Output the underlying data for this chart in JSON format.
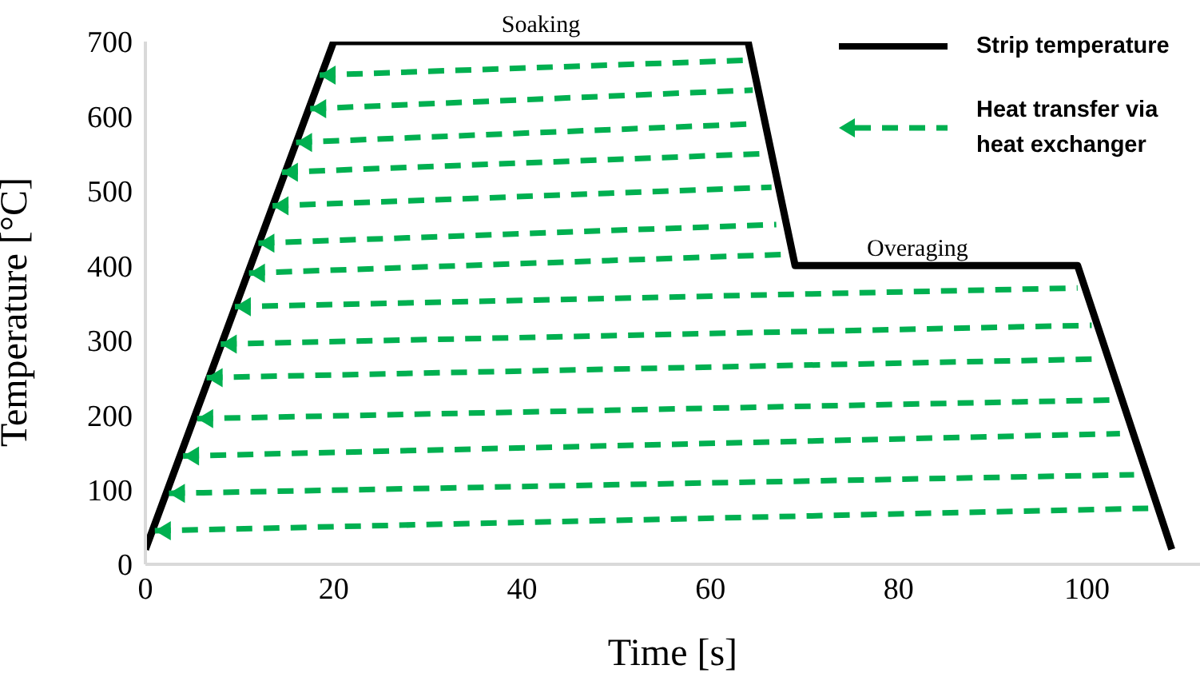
{
  "chart_data": {
    "type": "line",
    "xlabel": "Time [s]",
    "ylabel": "Temperature [°C]",
    "xlim": [
      0,
      112
    ],
    "xticks": [
      0,
      20,
      40,
      60,
      80,
      100
    ],
    "ylim": [
      0,
      700
    ],
    "yticks": [
      0,
      100,
      200,
      300,
      400,
      500,
      600,
      700
    ],
    "grid": false,
    "legend": "top right",
    "annotations": [
      {
        "text": "Soaking",
        "x": 42,
        "y": 700
      },
      {
        "text": "Overaging",
        "x": 82,
        "y": 400
      }
    ],
    "series": [
      {
        "name": "Strip temperature",
        "color": "#000000",
        "line_style": "solid",
        "x": [
          0,
          20,
          64,
          69,
          99,
          109
        ],
        "values": [
          20,
          700,
          700,
          400,
          400,
          20
        ]
      },
      {
        "name": "Heat transfer via heat exchanger",
        "color": "#00b050",
        "line_style": "dashed",
        "x": [
          18.5,
          64,
          null,
          17.5,
          64.5,
          null,
          16,
          65,
          null,
          14.5,
          66,
          null,
          13.5,
          66.5,
          null,
          12,
          67,
          null,
          11,
          68,
          null,
          9.5,
          99,
          null,
          8,
          100.5,
          null,
          6.5,
          101.5,
          null,
          5.5,
          102.5,
          null,
          4,
          103.5,
          null,
          2.5,
          105,
          null,
          1,
          106.5,
          null
        ],
        "values": [
          655,
          675,
          null,
          610,
          635,
          null,
          565,
          590,
          null,
          525,
          550,
          null,
          480,
          505,
          null,
          430,
          455,
          null,
          390,
          415,
          null,
          345,
          370,
          null,
          295,
          320,
          null,
          250,
          275,
          null,
          195,
          220,
          null,
          145,
          175,
          null,
          95,
          120,
          null,
          45,
          75,
          null
        ]
      }
    ]
  }
}
